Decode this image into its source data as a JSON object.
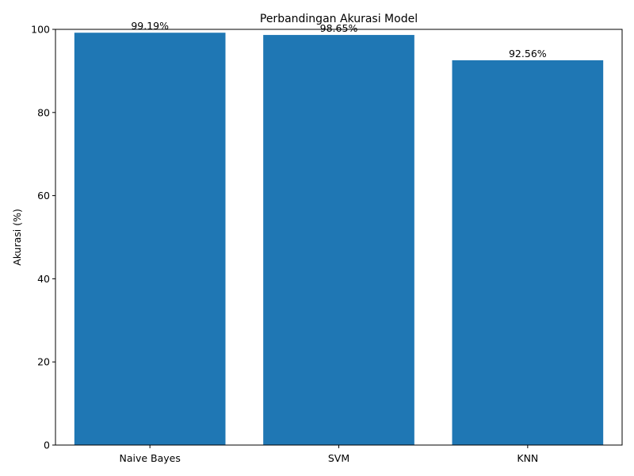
{
  "chart_data": {
    "type": "bar",
    "title": "Perbandingan Akurasi Model",
    "xlabel": "",
    "ylabel": "Akurasi (%)",
    "categories": [
      "Naive Bayes",
      "SVM",
      "KNN"
    ],
    "values": [
      99.19,
      98.65,
      92.56
    ],
    "data_labels": [
      "99.19%",
      "98.65%",
      "92.56%"
    ],
    "ylim": [
      0,
      100
    ],
    "yticks": [
      0,
      20,
      40,
      60,
      80,
      100
    ],
    "ytick_labels": [
      "0",
      "20",
      "40",
      "60",
      "80",
      "100"
    ],
    "grid": false,
    "bar_color": "#1f77b4"
  }
}
